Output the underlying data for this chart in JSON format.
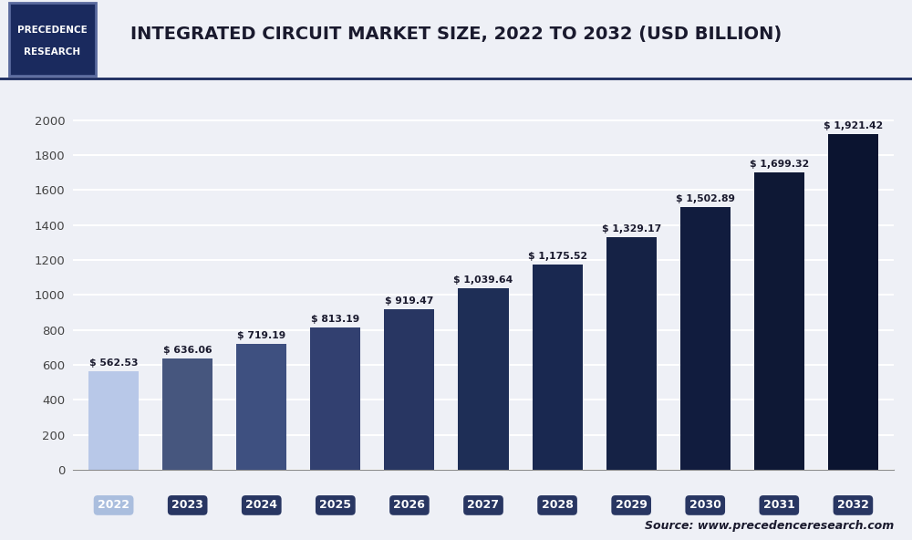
{
  "title": "INTEGRATED CIRCUIT MARKET SIZE, 2022 TO 2032 (USD BILLION)",
  "years": [
    "2022",
    "2023",
    "2024",
    "2025",
    "2026",
    "2027",
    "2028",
    "2029",
    "2030",
    "2031",
    "2032"
  ],
  "values": [
    562.53,
    636.06,
    719.19,
    813.19,
    919.47,
    1039.64,
    1175.52,
    1329.17,
    1502.89,
    1699.32,
    1921.42
  ],
  "bar_colors": [
    "#b8c8e8",
    "#46567e",
    "#3e5080",
    "#324070",
    "#283662",
    "#1e2e56",
    "#192850",
    "#152245",
    "#111c3e",
    "#0e1835",
    "#0b1430"
  ],
  "tick_label_colors": [
    "#aabede",
    "#283662",
    "#283662",
    "#283662",
    "#283662",
    "#283662",
    "#283662",
    "#283662",
    "#283662",
    "#283662",
    "#283662"
  ],
  "ylim": [
    0,
    2100
  ],
  "yticks": [
    0,
    200,
    400,
    600,
    800,
    1000,
    1200,
    1400,
    1600,
    1800,
    2000
  ],
  "background_color": "#eef0f6",
  "plot_bg_color": "#eef0f6",
  "grid_color": "#ffffff",
  "source_text": "Source: www.precedenceresearch.com",
  "logo_line1": "PRECEDENCE",
  "logo_line2": "RESEARCH",
  "logo_bg": "#1a2a5e",
  "logo_border": "#1a2a5e",
  "value_label_color": "#1a1a2e",
  "axis_label_color": "#444444",
  "title_color": "#1a1a2e",
  "title_fontsize": 14,
  "sep_line_color": "#1a2a5e"
}
